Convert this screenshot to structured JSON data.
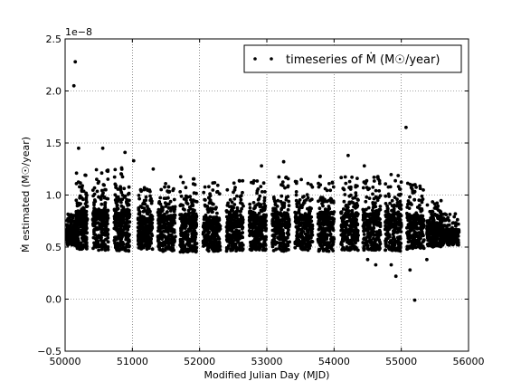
{
  "chart_data": {
    "type": "scatter",
    "xlabel": "Modified Julian Day (MJD)",
    "ylabel": "Ṁ estimated (M☉/year)",
    "offset_label": "1e−8",
    "xlim": [
      50000,
      56000
    ],
    "ylim": [
      -0.5,
      2.5
    ],
    "x_ticks": [
      50000,
      51000,
      52000,
      53000,
      54000,
      55000,
      56000
    ],
    "x_tick_labels": [
      "50000",
      "51000",
      "52000",
      "53000",
      "54000",
      "55000",
      "56000"
    ],
    "y_ticks": [
      -0.5,
      0.0,
      0.5,
      1.0,
      1.5,
      2.0,
      2.5
    ],
    "y_tick_labels": [
      "−0.5",
      "0.0",
      "0.5",
      "1.0",
      "1.5",
      "2.0",
      "2.5"
    ],
    "grid": true,
    "legend": {
      "position": "top-right",
      "label": "timeseries of Ṁ (M☉/year)"
    },
    "marker_color": "#000000",
    "series": [
      {
        "name": "timeseries of Ṁ (M☉/year)",
        "clusters": [
          {
            "x": [
              50020,
              50180
            ],
            "y": [
              0.52,
              0.85
            ]
          },
          {
            "x": [
              50160,
              50330
            ],
            "y": [
              0.48,
              1.22
            ]
          },
          {
            "x": [
              50410,
              50640
            ],
            "y": [
              0.47,
              1.25
            ]
          },
          {
            "x": [
              50730,
              50960
            ],
            "y": [
              0.46,
              1.28
            ]
          },
          {
            "x": [
              51080,
              51300
            ],
            "y": [
              0.48,
              1.08
            ]
          },
          {
            "x": [
              51380,
              51640
            ],
            "y": [
              0.46,
              1.15
            ]
          },
          {
            "x": [
              51710,
              51960
            ],
            "y": [
              0.45,
              1.18
            ]
          },
          {
            "x": [
              52050,
              52310
            ],
            "y": [
              0.46,
              1.12
            ]
          },
          {
            "x": [
              52400,
              52650
            ],
            "y": [
              0.46,
              1.16
            ]
          },
          {
            "x": [
              52740,
              52990
            ],
            "y": [
              0.47,
              1.15
            ]
          },
          {
            "x": [
              53080,
              53340
            ],
            "y": [
              0.46,
              1.18
            ]
          },
          {
            "x": [
              53420,
              53680
            ],
            "y": [
              0.47,
              1.16
            ]
          },
          {
            "x": [
              53760,
              54000
            ],
            "y": [
              0.46,
              1.22
            ]
          },
          {
            "x": [
              54100,
              54360
            ],
            "y": [
              0.47,
              1.2
            ]
          },
          {
            "x": [
              54430,
              54690
            ],
            "y": [
              0.47,
              1.18
            ]
          },
          {
            "x": [
              54760,
              55000
            ],
            "y": [
              0.46,
              1.2
            ]
          },
          {
            "x": [
              55080,
              55340
            ],
            "y": [
              0.48,
              1.12
            ]
          },
          {
            "x": [
              55380,
              55600
            ],
            "y": [
              0.5,
              0.95
            ]
          },
          {
            "x": [
              55580,
              55860
            ],
            "y": [
              0.52,
              0.82
            ]
          }
        ],
        "outliers": [
          {
            "x": 50150,
            "y": 2.28
          },
          {
            "x": 50130,
            "y": 2.05
          },
          {
            "x": 50200,
            "y": 1.45
          },
          {
            "x": 50560,
            "y": 1.45
          },
          {
            "x": 50890,
            "y": 1.41
          },
          {
            "x": 51020,
            "y": 1.33
          },
          {
            "x": 51310,
            "y": 1.25
          },
          {
            "x": 52920,
            "y": 1.28
          },
          {
            "x": 53250,
            "y": 1.32
          },
          {
            "x": 54210,
            "y": 1.38
          },
          {
            "x": 54450,
            "y": 1.28
          },
          {
            "x": 55070,
            "y": 1.65
          },
          {
            "x": 54500,
            "y": 0.38
          },
          {
            "x": 54620,
            "y": 0.33
          },
          {
            "x": 54850,
            "y": 0.33
          },
          {
            "x": 54920,
            "y": 0.22
          },
          {
            "x": 55130,
            "y": 0.28
          },
          {
            "x": 55380,
            "y": 0.38
          },
          {
            "x": 55200,
            "y": -0.01
          }
        ]
      }
    ]
  }
}
